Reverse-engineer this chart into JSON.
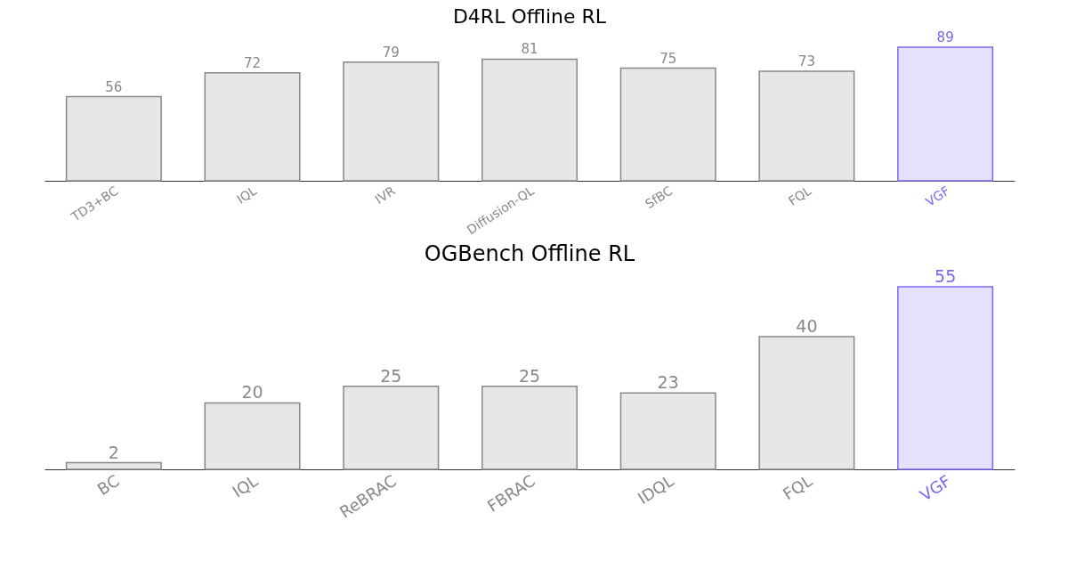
{
  "chart_data": [
    {
      "type": "bar",
      "title": "D4RL Offline RL",
      "categories": [
        "TD3+BC",
        "IQL",
        "IVR",
        "Diffusion-QL",
        "SfBC",
        "FQL",
        "VGF"
      ],
      "values": [
        56,
        72,
        79,
        81,
        75,
        73,
        89
      ],
      "colors": [
        "#888888",
        "#888888",
        "#888888",
        "#888888",
        "#888888",
        "#888888",
        "#7b68ee"
      ],
      "data_labels": true,
      "tick_labels": "x"
    },
    {
      "type": "bar",
      "title": "OGBench Offline RL",
      "categories": [
        "BC",
        "IQL",
        "ReBRAC",
        "FBRAC",
        "IDQL",
        "FQL",
        "VGF"
      ],
      "values": [
        2,
        20,
        25,
        25,
        23,
        40,
        55
      ],
      "colors": [
        "#888888",
        "#888888",
        "#888888",
        "#888888",
        "#888888",
        "#888888",
        "#7b68ee"
      ],
      "data_labels": true,
      "tick_labels": "x"
    }
  ]
}
